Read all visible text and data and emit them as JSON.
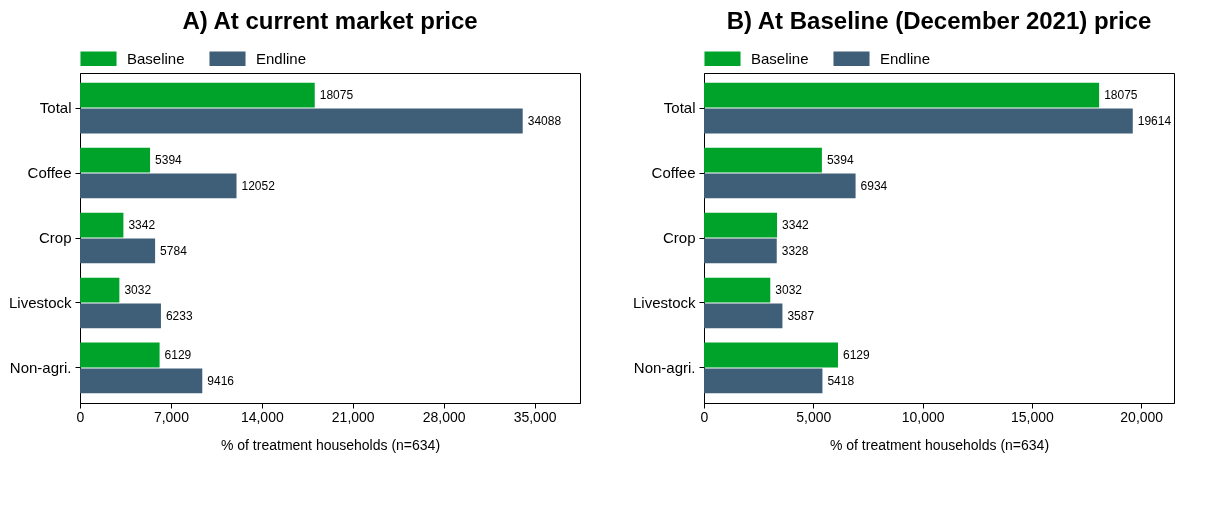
{
  "chart_data": [
    {
      "type": "bar",
      "title": "A)   At current market price",
      "orientation": "horizontal",
      "categories": [
        "Total",
        "Coffee",
        "Crop",
        "Livestock",
        "Non-agri."
      ],
      "xlabel": "% of treatment households (n=634)",
      "series": [
        {
          "name": "Baseline",
          "color": "#00a32a",
          "values": [
            18075,
            5394,
            3342,
            3032,
            6129
          ]
        },
        {
          "name": "Endline",
          "color": "#3f5f78",
          "values": [
            34088,
            12052,
            5784,
            6233,
            9416
          ]
        }
      ],
      "xlim": [
        0,
        38500
      ],
      "xticks": [
        0,
        {
          "value": 7000,
          "label": "7,000"
        },
        {
          "value": 14000,
          "label": "14,000"
        },
        {
          "value": 21000,
          "label": "21,000"
        },
        {
          "value": 28000,
          "label": "28,000"
        },
        {
          "value": 35000,
          "label": "35,000"
        }
      ],
      "data_labels": true,
      "legend": "top",
      "grid": false
    },
    {
      "type": "bar",
      "title": "B) At Baseline (December 2021) price",
      "orientation": "horizontal",
      "categories": [
        "Total",
        "Coffee",
        "Crop",
        "Livestock",
        "Non-agri."
      ],
      "xlabel": "% of treatment households (n=634)",
      "series": [
        {
          "name": "Baseline",
          "color": "#00a32a",
          "values": [
            18075,
            5394,
            3342,
            3032,
            6129
          ]
        },
        {
          "name": "Endline",
          "color": "#3f5f78",
          "values": [
            19614,
            6934,
            3328,
            3587,
            5418
          ]
        }
      ],
      "xlim": [
        0,
        21500
      ],
      "xticks": [
        0,
        {
          "value": 5000,
          "label": "5,000"
        },
        {
          "value": 10000,
          "label": "10,000"
        },
        {
          "value": 15000,
          "label": "15,000"
        },
        {
          "value": 20000,
          "label": "20,000"
        }
      ],
      "data_labels": true,
      "legend": "top",
      "grid": false
    }
  ]
}
